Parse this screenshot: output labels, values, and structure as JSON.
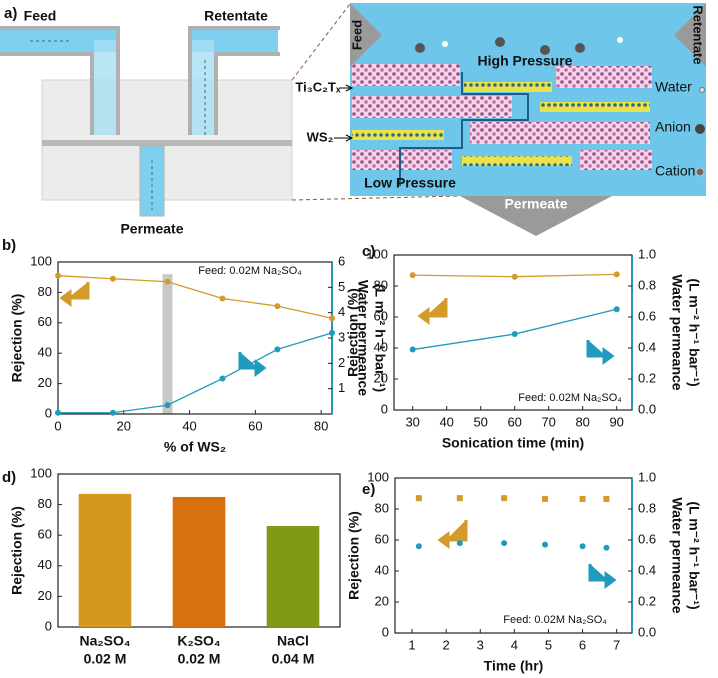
{
  "panel_a": {
    "label": "a)",
    "feed": "Feed",
    "retentate": "Retentate",
    "permeate": "Permeate",
    "membrane": {
      "feed": "Feed",
      "retentate": "Retentate",
      "high_pressure": "High Pressure",
      "low_pressure": "Low Pressure",
      "permeate": "Permeate",
      "ti3c2tx": "Ti₃C₂Tₓ",
      "ws2": "WS₂"
    },
    "legend": [
      "Water",
      "Anion",
      "Cation"
    ]
  },
  "chart_data": [
    {
      "panel_label": "b)",
      "type": "line",
      "x": [
        0,
        16.7,
        33.3,
        50,
        66.7,
        83.3
      ],
      "xlim": [
        0,
        83.3
      ],
      "xticks": [
        0,
        20,
        40,
        60,
        80
      ],
      "xlabel": "% of WS₂",
      "ylabel": "Rejection (%)",
      "ylim": [
        0,
        100
      ],
      "yticks": [
        0,
        20,
        40,
        60,
        80,
        100
      ],
      "y2label": [
        "Water permeance",
        "(L m⁻² h⁻¹ bar⁻¹)"
      ],
      "y2lim": [
        0,
        6
      ],
      "y2ticks": [
        1,
        2,
        3,
        4,
        5,
        6
      ],
      "annotation": "Feed: 0.02M Na₂SO₄",
      "series": [
        {
          "color": "#d49a2a",
          "values": [
            91,
            89,
            87,
            76,
            71,
            63
          ]
        },
        {
          "color": "#1f9bbd",
          "axis": "y2",
          "values": [
            0.05,
            0.05,
            0.35,
            1.4,
            2.55,
            3.2
          ]
        }
      ]
    },
    {
      "panel_label": "c)",
      "type": "line",
      "x": [
        30,
        60,
        90
      ],
      "xlim": [
        24.5,
        94.5
      ],
      "xticks": [
        30,
        40,
        50,
        60,
        70,
        80,
        90
      ],
      "xlabel": "Sonication time (min)",
      "ylabel": "Rejection (%)",
      "ylim": [
        0,
        100
      ],
      "yticks": [
        0,
        20,
        40,
        60,
        80,
        100
      ],
      "y2label": [
        "Water permeance",
        "(L m⁻² h⁻¹ bar⁻¹)"
      ],
      "y2lim": [
        0,
        1
      ],
      "y2ticks": [
        {
          "value": 0,
          "label": "0.0"
        },
        0.2,
        0.4,
        0.6,
        0.8,
        {
          "value": 1,
          "label": "1.0"
        }
      ],
      "annotation": "Feed: 0.02M Na₂SO₄",
      "series": [
        {
          "color": "#d49a2a",
          "values": [
            87,
            86,
            87.5
          ]
        },
        {
          "color": "#1f9bbd",
          "axis": "y2",
          "values": [
            0.39,
            0.49,
            0.65
          ]
        }
      ]
    },
    {
      "panel_label": "d)",
      "type": "bar",
      "categories": [
        "Na₂SO₄",
        "K₂SO₄",
        "NaCl"
      ],
      "category_sublabels": [
        "0.02 M",
        "0.02 M",
        "0.04 M"
      ],
      "values": [
        87,
        85,
        66
      ],
      "colors": [
        "#d4981e",
        "#d9700f",
        "#7e9a16"
      ],
      "ylabel": "Rejection (%)",
      "ylim": [
        0,
        100
      ],
      "yticks": [
        0,
        20,
        40,
        60,
        80,
        100
      ]
    },
    {
      "panel_label": "e)",
      "type": "scatter",
      "x": [
        1.2,
        2.4,
        3.7,
        4.9,
        6.0,
        6.7
      ],
      "xlim": [
        0.5,
        7.45
      ],
      "xticks": [
        1,
        2,
        3,
        4,
        5,
        6,
        7
      ],
      "xlabel": "Time (hr)",
      "ylabel": "Rejection (%)",
      "ylim": [
        0,
        100
      ],
      "yticks": [
        0,
        20,
        40,
        60,
        80,
        100
      ],
      "y2label": [
        "Water permeance",
        "(L m⁻² h⁻¹ bar⁻¹)"
      ],
      "y2lim": [
        0,
        1
      ],
      "y2ticks": [
        {
          "value": 0,
          "label": "0.0"
        },
        0.2,
        0.4,
        0.6,
        0.8,
        {
          "value": 1,
          "label": "1.0"
        }
      ],
      "annotation": "Feed: 0.02M Na₂SO₄",
      "series": [
        {
          "color": "#d49a2a",
          "marker": "square",
          "values": [
            87,
            87,
            87,
            86.5,
            86.5,
            86.5
          ]
        },
        {
          "color": "#1f9bbd",
          "marker": "circle",
          "axis": "y2",
          "values": [
            0.56,
            0.58,
            0.58,
            0.57,
            0.56,
            0.55
          ]
        }
      ]
    }
  ]
}
